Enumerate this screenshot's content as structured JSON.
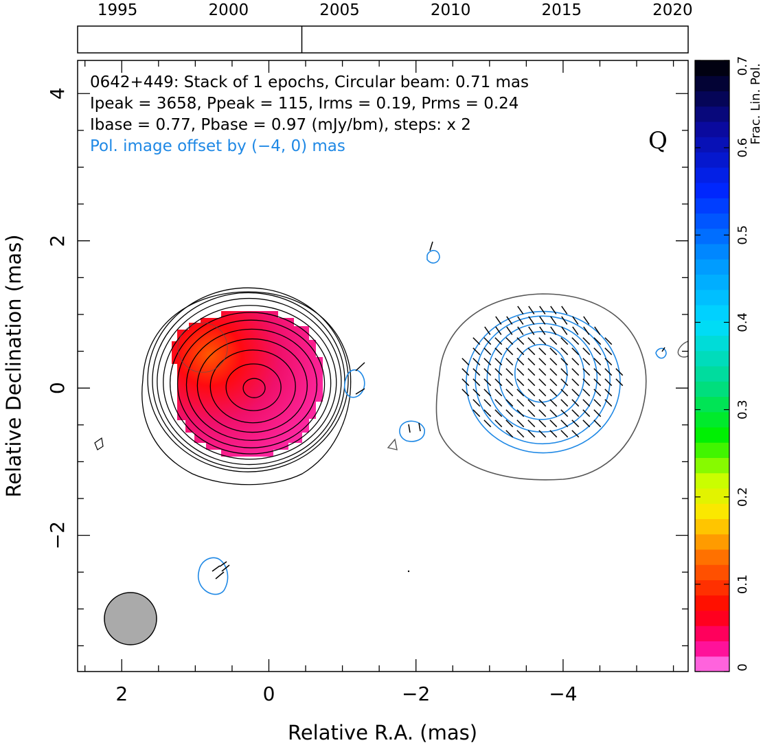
{
  "timeline": {
    "year_labels": [
      "1995",
      "2000",
      "2005",
      "2010",
      "2015",
      "2020"
    ],
    "year_range": [
      1993.2,
      2020.7
    ],
    "epoch_years": [
      2003.3
    ]
  },
  "annotations": {
    "line1": "0642+449: Stack of 1 epochs, Circular beam: 0.71 mas",
    "line2": "Ipeak = 3658, Ppeak = 115, Irms = 0.19, Prms = 0.24",
    "line3": "Ibase = 0.77, Pbase = 0.97 (mJy/bm), steps: x 2",
    "line4": "Pol. image offset by (−4, 0) mas",
    "band": "Q"
  },
  "colorbar": {
    "label": "Frac. Lin. Pol.",
    "ticks": [
      "0",
      "0.1",
      "0.2",
      "0.3",
      "0.4",
      "0.5",
      "0.6",
      "0.7"
    ],
    "range": [
      0,
      0.7
    ]
  },
  "colors": {
    "total_intensity_contours": "#000000",
    "pol_contours": "#1e88e5",
    "offset_text": "#1e88e5",
    "base_contour_grey": "#555555",
    "beam_fill": "#aaaaaa"
  },
  "chart_data": {
    "type": "contour",
    "xlabel": "Relative R.A. (mas)",
    "ylabel": "Relative Declination (mas)",
    "xlim": [
      2.6,
      -5.7
    ],
    "ylim": [
      -3.85,
      4.45
    ],
    "xticks": [
      2,
      0,
      -2,
      -4
    ],
    "yticks": [
      4,
      2,
      0,
      -2
    ],
    "xtick_labels": [
      "2",
      "0",
      "−2",
      "−4"
    ],
    "ytick_labels": [
      "4",
      "2",
      "0",
      "−2"
    ],
    "beam_mas": 0.71,
    "beam_center": [
      1.9,
      -3.1
    ],
    "intensity_peak": [
      0.2,
      0.0
    ],
    "pol_offset": [
      -4,
      0
    ],
    "pol_peak": [
      -3.7,
      0.2
    ],
    "frac_pol_range": [
      0.0,
      0.15
    ]
  }
}
